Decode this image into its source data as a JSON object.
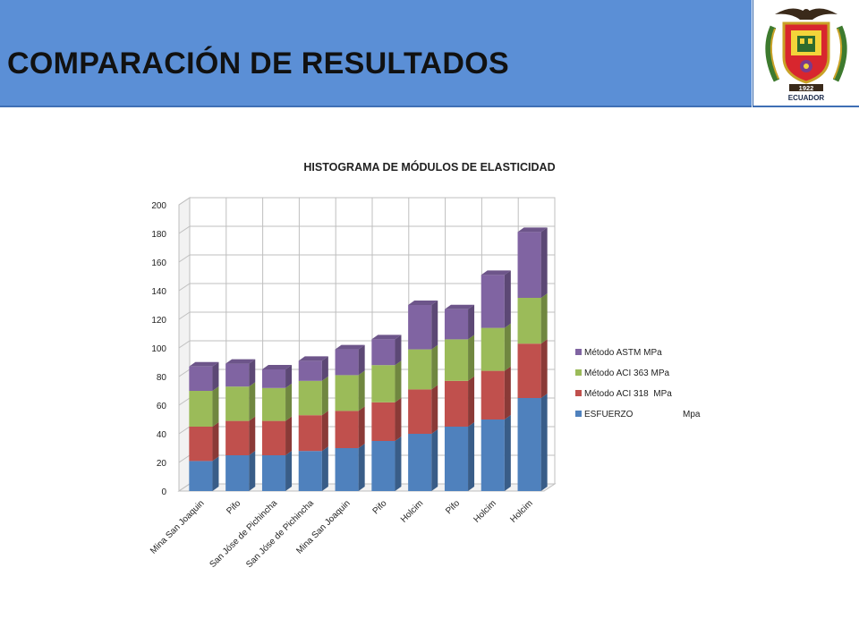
{
  "header": {
    "title": "COMPARACIÓN DE RESULTADOS",
    "logo": {
      "year": "1922",
      "country": "ECUADOR"
    },
    "colors": {
      "bar": "#5b8fd6",
      "border": "#3f6fb5"
    }
  },
  "chart_data": {
    "type": "bar",
    "stacked": true,
    "three_d": true,
    "title": "HISTOGRAMA DE MÓDULOS DE ELASTICIDAD",
    "categories": [
      "Mina San Joaquin",
      "Pifo",
      "San Jóse de Pichincha",
      "San Jóse de Pichincha",
      "Mina San Joaquin",
      "Pifo",
      "Holcim",
      "Pifo",
      "Holcim",
      "Holcim"
    ],
    "series": [
      {
        "name": "ESFUERZO                    Mpa",
        "color": "#4f81bd",
        "values": [
          21,
          25,
          25,
          28,
          30,
          35,
          40,
          45,
          50,
          65
        ]
      },
      {
        "name": "Método ACI 318  MPa",
        "color": "#c0504d",
        "values": [
          24,
          24,
          24,
          25,
          26,
          27,
          31,
          32,
          34,
          38
        ]
      },
      {
        "name": "Método ACI 363 MPa",
        "color": "#9bbb59",
        "values": [
          25,
          24,
          23,
          24,
          25,
          26,
          28,
          29,
          30,
          32
        ]
      },
      {
        "name": "Método ASTM MPa",
        "color": "#8064a2",
        "values": [
          17,
          16,
          13,
          14,
          18,
          18,
          31,
          21,
          37,
          46
        ]
      }
    ],
    "ylim": [
      0,
      200
    ],
    "yticks": [
      "0",
      "20",
      "40",
      "60",
      "80",
      "100",
      "120",
      "140",
      "160",
      "180",
      "200"
    ],
    "grid": true,
    "legend_position": "right"
  }
}
